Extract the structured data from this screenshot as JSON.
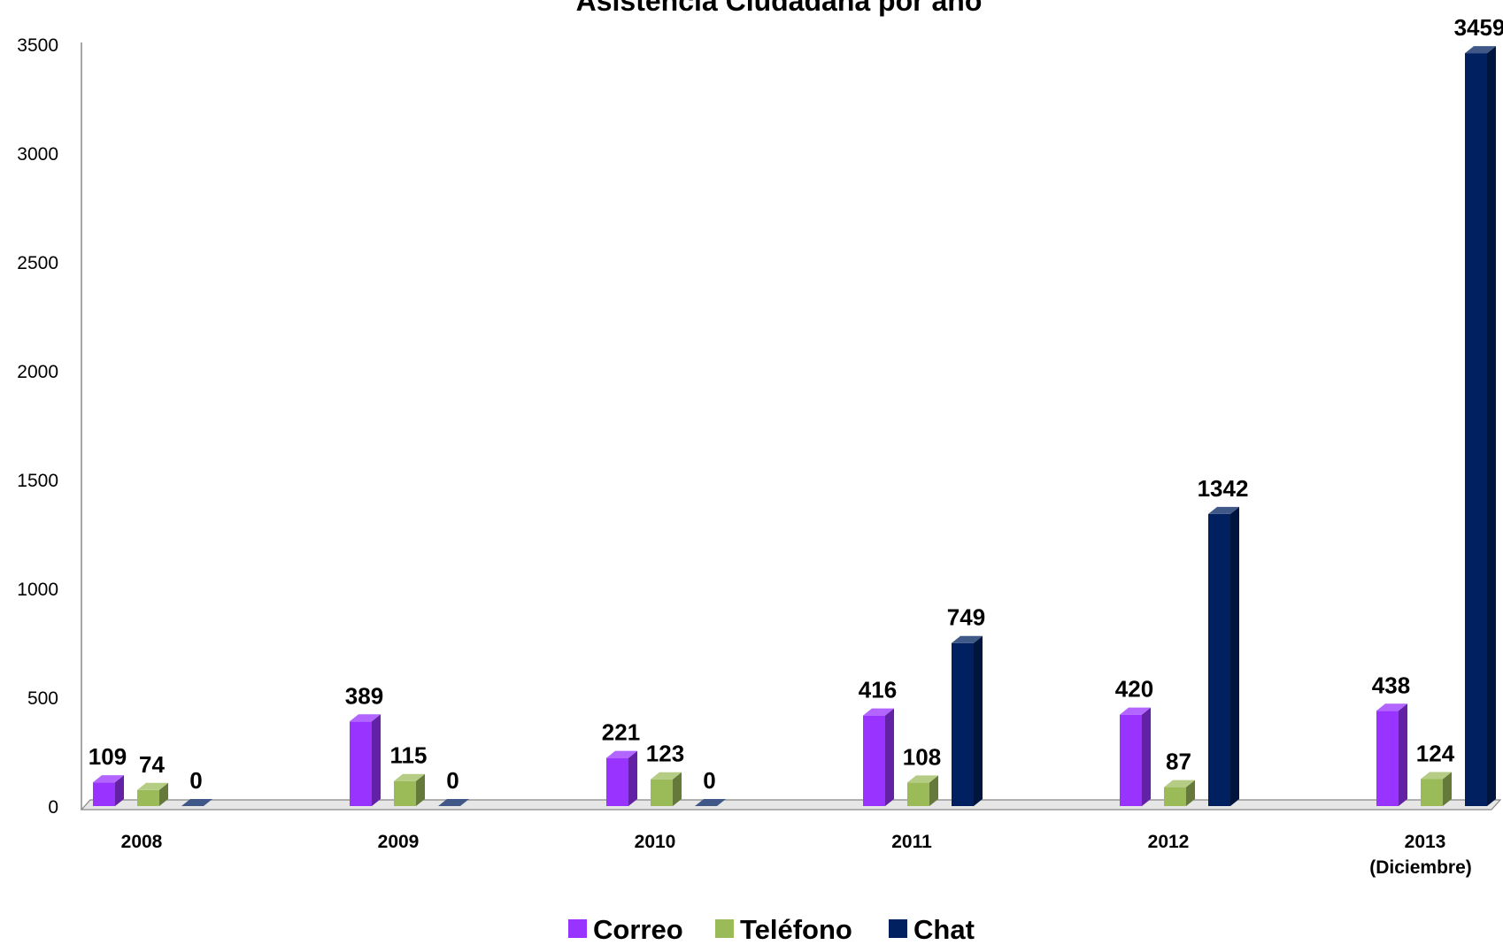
{
  "chart_data": {
    "type": "bar",
    "title": "Asistencia Ciudadana por año",
    "categories": [
      [
        "2008"
      ],
      [
        "2009"
      ],
      [
        "2010"
      ],
      [
        "2011"
      ],
      [
        "2012"
      ],
      [
        "2013",
        "(Diciembre)"
      ]
    ],
    "series": [
      {
        "name": "Correo",
        "color": "#9933FF",
        "values": [
          109,
          389,
          221,
          416,
          420,
          438
        ]
      },
      {
        "name": "Teléfono",
        "color": "#9BBB59",
        "values": [
          74,
          115,
          123,
          108,
          87,
          124
        ]
      },
      {
        "name": "Chat",
        "color": "#002060",
        "values": [
          0,
          0,
          0,
          749,
          1342,
          3459
        ]
      }
    ],
    "yticks": [
      0,
      500,
      1000,
      1500,
      2000,
      2500,
      3000,
      3500
    ],
    "ylim": [
      0,
      3500
    ],
    "data_labels": true,
    "legend_position": "bottom",
    "grid": false,
    "style": "3d-columns"
  }
}
